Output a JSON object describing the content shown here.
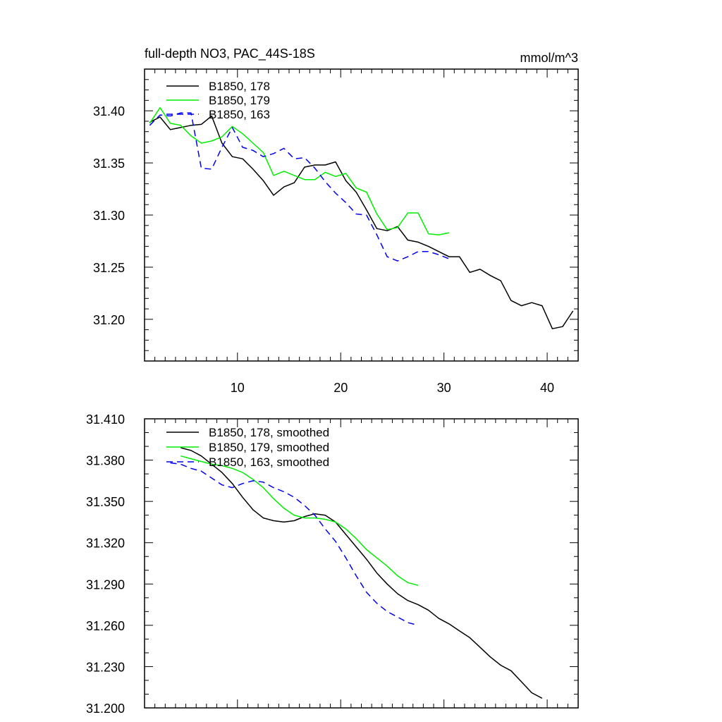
{
  "chart_data": [
    {
      "type": "line",
      "title": "full-depth NO3, PAC_44S-18S",
      "units": "mmol/m^3",
      "xlim": [
        1,
        43
      ],
      "ylim": [
        31.16,
        31.44
      ],
      "xticks": [
        10,
        20,
        30,
        40
      ],
      "yticks": [
        31.2,
        31.25,
        31.3,
        31.35,
        31.4
      ],
      "ytick_labels": [
        "31.20",
        "31.25",
        "31.30",
        "31.35",
        "31.40"
      ],
      "legend_position": "top-left",
      "series": [
        {
          "name": "B1850, 178",
          "color": "#000000",
          "dash": "solid",
          "x": [
            1.5,
            2.5,
            3.5,
            4.5,
            5.5,
            6.5,
            7.5,
            8.5,
            9.5,
            10.5,
            11.5,
            12.5,
            13.5,
            14.5,
            15.5,
            16.5,
            17.5,
            18.5,
            19.5,
            20.5,
            21.5,
            22.5,
            23.5,
            24.5,
            25.5,
            26.5,
            27.5,
            28.5,
            29.5,
            30.5,
            31.5,
            32.5,
            33.5,
            34.5,
            35.5,
            36.5,
            37.5,
            38.5,
            39.5,
            40.5,
            41.5,
            42.5
          ],
          "values": [
            31.389,
            31.394,
            31.382,
            31.384,
            31.386,
            31.387,
            31.395,
            31.369,
            31.356,
            31.354,
            31.344,
            31.333,
            31.319,
            31.327,
            31.331,
            31.346,
            31.348,
            31.348,
            31.351,
            31.333,
            31.322,
            31.305,
            31.287,
            31.285,
            31.289,
            31.276,
            31.274,
            31.27,
            31.265,
            31.26,
            31.26,
            31.245,
            31.248,
            31.242,
            31.237,
            31.218,
            31.213,
            31.216,
            31.213,
            31.191,
            31.193,
            31.208
          ]
        },
        {
          "name": "B1850, 179",
          "color": "#00ee00",
          "dash": "solid",
          "x": [
            1.5,
            2.5,
            3.5,
            4.5,
            5.5,
            6.5,
            7.5,
            8.5,
            9.5,
            10.5,
            11.5,
            12.5,
            13.5,
            14.5,
            15.5,
            16.5,
            17.5,
            18.5,
            19.5,
            20.5,
            21.5,
            22.5,
            23.5,
            24.5,
            25.5,
            26.5,
            27.5,
            28.5,
            29.5,
            30.5
          ],
          "values": [
            31.388,
            31.403,
            31.388,
            31.386,
            31.376,
            31.369,
            31.371,
            31.375,
            31.385,
            31.378,
            31.369,
            31.36,
            31.338,
            31.342,
            31.338,
            31.334,
            31.334,
            31.341,
            31.337,
            31.34,
            31.326,
            31.322,
            31.301,
            31.286,
            31.288,
            31.302,
            31.302,
            31.282,
            31.281,
            31.283
          ]
        },
        {
          "name": "B1850, 163",
          "color": "#0000ee",
          "dash": "dashed",
          "x": [
            1.5,
            2.5,
            3.5,
            4.5,
            5.5,
            6.5,
            7.5,
            8.5,
            9.5,
            10.5,
            11.5,
            12.5,
            13.5,
            14.5,
            15.5,
            16.5,
            17.5,
            18.5,
            19.5,
            20.5,
            21.5,
            22.5,
            23.5,
            24.5,
            25.5,
            26.5,
            27.5,
            28.5,
            29.5,
            30.5
          ],
          "values": [
            31.386,
            31.396,
            31.395,
            31.398,
            31.398,
            31.345,
            31.344,
            31.365,
            31.384,
            31.365,
            31.362,
            31.356,
            31.359,
            31.364,
            31.354,
            31.355,
            31.345,
            31.332,
            31.321,
            31.312,
            31.301,
            31.3,
            31.281,
            31.26,
            31.256,
            31.26,
            31.265,
            31.265,
            31.262,
            31.258
          ]
        }
      ]
    },
    {
      "type": "line",
      "title": "",
      "xlim": [
        1,
        43
      ],
      "ylim": [
        31.2,
        31.41
      ],
      "xticks": [
        10,
        20,
        30,
        40
      ],
      "yticks": [
        31.2,
        31.23,
        31.26,
        31.29,
        31.32,
        31.35,
        31.38,
        31.41
      ],
      "ytick_labels": [
        "31.200",
        "31.230",
        "31.260",
        "31.290",
        "31.320",
        "31.350",
        "31.380",
        "31.410"
      ],
      "legend_position": "top-left",
      "series": [
        {
          "name": "B1850, 178, smoothed",
          "color": "#000000",
          "dash": "solid",
          "x": [
            4.5,
            5.5,
            6.5,
            7.5,
            8.5,
            9.5,
            10.5,
            11.5,
            12.5,
            13.5,
            14.5,
            15.5,
            16.5,
            17.5,
            18.5,
            19.5,
            20.5,
            21.5,
            22.5,
            23.5,
            24.5,
            25.5,
            26.5,
            27.5,
            28.5,
            29.5,
            30.5,
            31.5,
            32.5,
            33.5,
            34.5,
            35.5,
            36.5,
            37.5,
            38.5,
            39.5
          ],
          "values": [
            31.389,
            31.387,
            31.383,
            31.377,
            31.371,
            31.363,
            31.353,
            31.344,
            31.338,
            31.336,
            31.335,
            31.336,
            31.339,
            31.341,
            31.34,
            31.335,
            31.326,
            31.317,
            31.308,
            31.298,
            31.29,
            31.283,
            31.278,
            31.275,
            31.271,
            31.265,
            31.261,
            31.256,
            31.251,
            31.244,
            31.237,
            31.231,
            31.227,
            31.219,
            31.211,
            31.207
          ]
        },
        {
          "name": "B1850, 179, smoothed",
          "color": "#00ee00",
          "dash": "solid",
          "x": [
            4.5,
            5.5,
            6.5,
            7.5,
            8.5,
            9.5,
            10.5,
            11.5,
            12.5,
            13.5,
            14.5,
            15.5,
            16.5,
            17.5,
            18.5,
            19.5,
            20.5,
            21.5,
            22.5,
            23.5,
            24.5,
            25.5,
            26.5,
            27.5
          ],
          "values": [
            31.383,
            31.381,
            31.379,
            31.377,
            31.376,
            31.374,
            31.371,
            31.366,
            31.36,
            31.352,
            31.345,
            31.34,
            31.338,
            31.338,
            31.337,
            31.335,
            31.33,
            31.323,
            31.315,
            31.309,
            31.303,
            31.296,
            31.291,
            31.289
          ]
        },
        {
          "name": "B1850, 163, smoothed",
          "color": "#0000ee",
          "dash": "dashed",
          "x": [
            3.5,
            4.5,
            5.5,
            6.5,
            7.5,
            8.5,
            9.5,
            10.5,
            11.5,
            12.5,
            13.5,
            14.5,
            15.5,
            16.5,
            17.5,
            18.5,
            19.5,
            20.5,
            21.5,
            22.5,
            23.5,
            24.5,
            25.5,
            26.5,
            27.5
          ],
          "values": [
            31.378,
            31.377,
            31.374,
            31.372,
            31.367,
            31.362,
            31.36,
            31.363,
            31.365,
            31.364,
            31.36,
            31.357,
            31.353,
            31.347,
            31.34,
            31.33,
            31.321,
            31.309,
            31.296,
            31.284,
            31.276,
            31.27,
            31.266,
            31.262,
            31.26
          ]
        }
      ]
    }
  ]
}
